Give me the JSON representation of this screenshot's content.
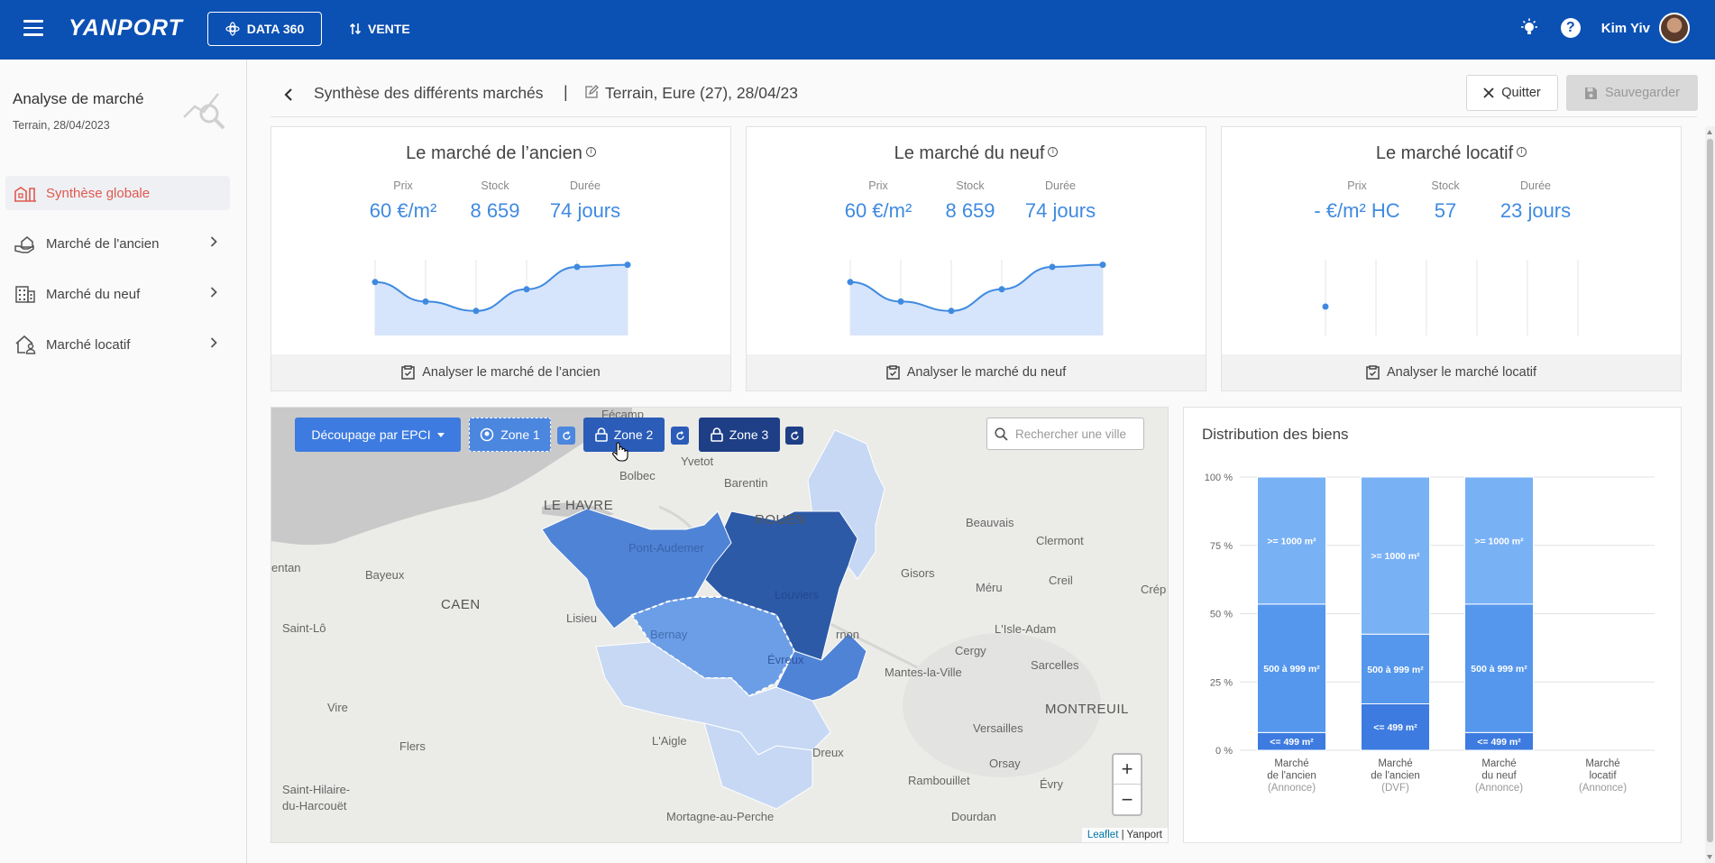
{
  "topbar": {
    "logo": "YANPORT",
    "data360_label": "DATA 360",
    "vente_label": "VENTE",
    "user_name": "Kim Yiv"
  },
  "sidebar": {
    "title": "Analyse de marché",
    "subtitle": "Terrain, 28/04/2023",
    "items": [
      {
        "label": "Synthèse globale",
        "icon": "building-chart-icon",
        "active": true
      },
      {
        "label": "Marché de l'ancien",
        "icon": "hand-house-icon"
      },
      {
        "label": "Marché du neuf",
        "icon": "office-building-icon"
      },
      {
        "label": "Marché locatif",
        "icon": "house-person-icon"
      }
    ]
  },
  "header": {
    "title": "Synthèse des différents marchés",
    "separator": "|",
    "context": "Terrain, Eure (27), 28/04/23",
    "quit_label": "Quitter",
    "save_label": "Sauvegarder"
  },
  "cards": [
    {
      "title": "Le marché de l’ancien",
      "prix_label": "Prix",
      "prix": "60 €/m²",
      "stock_label": "Stock",
      "stock": "8 659",
      "duree_label": "Durée",
      "duree": "74 jours",
      "action": "Analyser le marché de l’ancien"
    },
    {
      "title": "Le marché du neuf",
      "prix_label": "Prix",
      "prix": "60 €/m²",
      "stock_label": "Stock",
      "stock": "8 659",
      "duree_label": "Durée",
      "duree": "74 jours",
      "action": "Analyser le marché du neuf"
    },
    {
      "title": "Le marché locatif",
      "prix_label": "Prix",
      "prix": "- €/m² HC",
      "stock_label": "Stock",
      "stock": "57",
      "duree_label": "Durée",
      "duree": "23 jours",
      "action": "Analyser le marché locatif"
    }
  ],
  "map": {
    "decoupage_label": "Découpage par EPCI",
    "zone1_label": "Zone 1",
    "zone2_label": "Zone 2",
    "zone3_label": "Zone 3",
    "search_placeholder": "Rechercher une ville",
    "zoom_in": "+",
    "zoom_out": "−",
    "attribution_link": "Leaflet",
    "attribution_text": " | Yanport",
    "places": {
      "fecamp": "Fécamp",
      "yvetot": "Yvetot",
      "bolbec": "Bolbec",
      "barentin": "Barentin",
      "le_havre": "LE HAVRE",
      "rouen": "ROUEN",
      "beauvais": "Beauvais",
      "clermont": "Clermont",
      "entan": "entan",
      "bayeux": "Bayeux",
      "caen": "CAEN",
      "lisieux": "Lisieu",
      "gisors": "Gisors",
      "creil": "Creil",
      "crepy": "Crép",
      "meru": "Méru",
      "saint_lo": "Saint-Lô",
      "vernon": "rnon",
      "lisle_adam": "L'Isle-Adam",
      "cergy": "Cergy",
      "sarcelles": "Sarcelles",
      "mantes": "Mantes-la-Ville",
      "montreuil": "MONTREUIL",
      "vire": "Vire",
      "flers": "Flers",
      "laigle": "L'Aigle",
      "versailles": "Versailles",
      "dreux": "Dreux",
      "orsay": "Orsay",
      "rambouillet": "Rambouillet",
      "evry": "Évry",
      "saint_hilaire_1": "Saint-Hilaire-",
      "saint_hilaire_2": "du-Harcouët",
      "mortagne": "Mortagne-au-Perche",
      "dourdan": "Dourdan",
      "pont_audemer": "Pont-Audemer",
      "bernay": "Bernay",
      "louviers": "Louviers",
      "evreux": "Évreux"
    }
  },
  "distribution": {
    "title": "Distribution des biens"
  },
  "chart_data": {
    "type": "bar",
    "stacked": true,
    "title": "Distribution des biens",
    "ylim": [
      0,
      100
    ],
    "yticks": [
      "0 %",
      "25 %",
      "50 %",
      "75 %",
      "100 %"
    ],
    "categories": [
      {
        "line1": "Marché",
        "line2": "de l'ancien",
        "line3": "(Annonce)"
      },
      {
        "line1": "Marché",
        "line2": "de l'ancien",
        "line3": "(DVF)"
      },
      {
        "line1": "Marché",
        "line2": "du neuf",
        "line3": "(Annonce)"
      },
      {
        "line1": "Marché",
        "line2": "locatif",
        "line3": "(Annonce)"
      }
    ],
    "series": [
      {
        "name": "<= 499 m²",
        "color": "#3d7be0",
        "values": [
          6.5,
          17,
          6.5,
          0
        ]
      },
      {
        "name": "500 à 999 m²",
        "color": "#5597ec",
        "values": [
          47,
          25.5,
          47,
          0
        ]
      },
      {
        "name": ">= 1000 m²",
        "color": "#79b1f5",
        "values": [
          46.5,
          57.5,
          46.5,
          0
        ]
      }
    ]
  },
  "mini_charts": [
    {
      "values": [
        74,
        47,
        34,
        64,
        95,
        98
      ],
      "color": "#3f8ae0"
    },
    {
      "values": [
        74,
        47,
        34,
        64,
        95,
        98
      ],
      "color": "#3f8ae0"
    },
    {
      "values": [
        40
      ],
      "color": "#3f8ae0"
    }
  ]
}
